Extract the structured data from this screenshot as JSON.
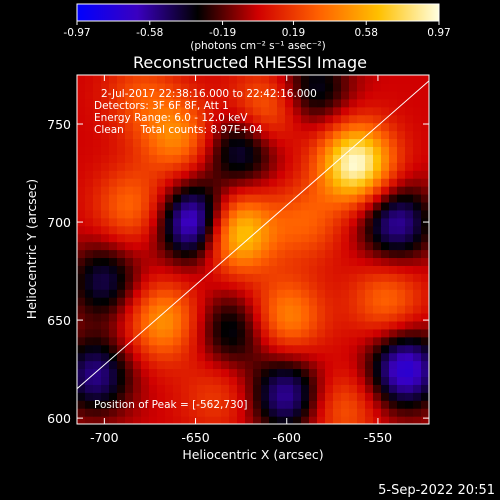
{
  "chart_data": {
    "type": "heatmap",
    "title": "Reconstructed RHESSI Image",
    "xlabel": "Heliocentric X (arcsec)",
    "ylabel": "Heliocentric Y (arcsec)",
    "xlim": [
      -715,
      -522
    ],
    "ylim": [
      597,
      775
    ],
    "xticks": [
      -700,
      -650,
      -600,
      -550
    ],
    "yticks": [
      600,
      650,
      700,
      750
    ],
    "colorbar": {
      "min": -0.97,
      "max": 0.97,
      "ticks": [
        -0.97,
        -0.58,
        -0.19,
        0.19,
        0.58,
        0.97
      ],
      "tick_labels": [
        "-0.97",
        "-0.58",
        "-0.19",
        "0.19",
        "0.58",
        "0.97"
      ],
      "units_label": "(photons cm⁻² s⁻¹ asec⁻²)",
      "colors": [
        "#0000ff",
        "#3a00c0",
        "#000000",
        "#d00000",
        "#ff6000",
        "#ffc000",
        "#ffffe0"
      ]
    },
    "annotations": [
      "2-Jul-2017 22:38:16.000 to 22:42:16.000",
      "Detectors: 3F 6F 8F, Att 1",
      "Energy Range: 6.0 - 12.0 keV",
      "Clean     Total counts: 8.97E+04"
    ],
    "peak_text": "Position of Peak = [-562,730]",
    "peak": [
      -562,
      730
    ],
    "limb_line": [
      [
        -715,
        615
      ],
      [
        -522,
        772
      ]
    ],
    "sources": [
      {
        "x": -562,
        "y": 730,
        "value": 0.97
      },
      {
        "x": -628,
        "y": 695,
        "value": 0.8
      },
      {
        "x": -660,
        "y": 744,
        "value": 0.45
      },
      {
        "x": -685,
        "y": 708,
        "value": 0.35
      },
      {
        "x": -612,
        "y": 757,
        "value": 0.4
      },
      {
        "x": -668,
        "y": 650,
        "value": 0.5
      },
      {
        "x": -600,
        "y": 652,
        "value": 0.45
      },
      {
        "x": -545,
        "y": 660,
        "value": 0.35
      },
      {
        "x": -590,
        "y": 700,
        "value": 0.3
      },
      {
        "x": -570,
        "y": 605,
        "value": 0.3
      },
      {
        "x": -638,
        "y": 612,
        "value": 0.2
      },
      {
        "x": -680,
        "y": 765,
        "value": 0.25
      },
      {
        "x": -650,
        "y": 700,
        "value": -0.85
      },
      {
        "x": -535,
        "y": 625,
        "value": -0.75
      },
      {
        "x": -705,
        "y": 622,
        "value": -0.55
      },
      {
        "x": -625,
        "y": 738,
        "value": -0.5
      },
      {
        "x": -600,
        "y": 612,
        "value": -0.6
      },
      {
        "x": -540,
        "y": 700,
        "value": -0.6
      },
      {
        "x": -585,
        "y": 768,
        "value": -0.4
      },
      {
        "x": -700,
        "y": 670,
        "value": -0.45
      },
      {
        "x": -630,
        "y": 645,
        "value": -0.4
      }
    ]
  },
  "footer": {
    "timestamp": "5-Sep-2022 20:51"
  }
}
